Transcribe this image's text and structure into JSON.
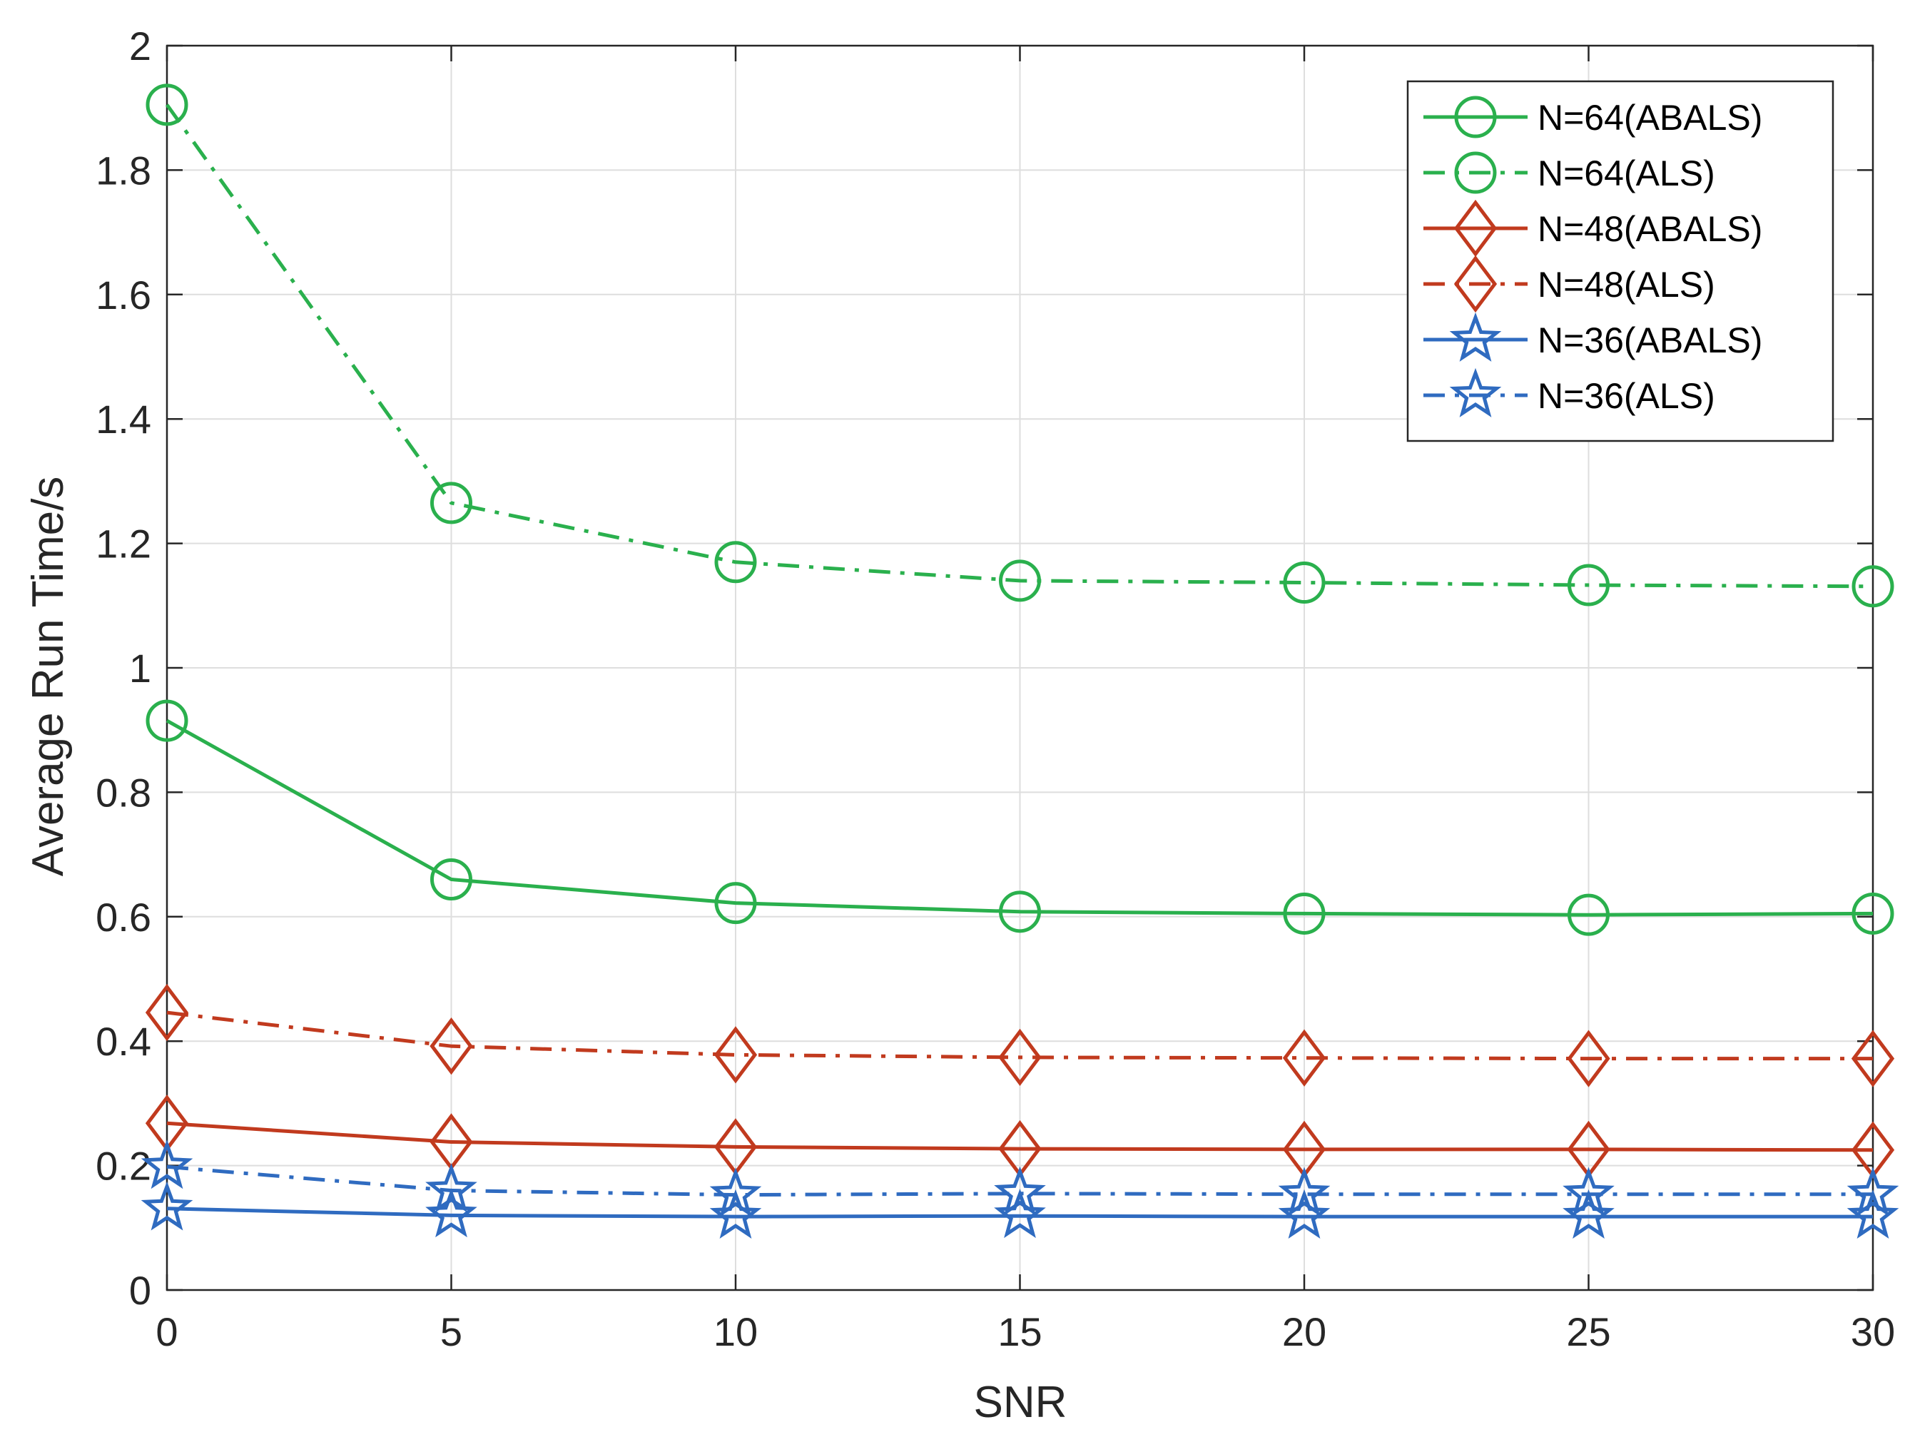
{
  "chart_data": {
    "type": "line",
    "title": "",
    "xlabel": "SNR",
    "ylabel": "Average Run Time/s",
    "xlim": [
      0,
      30
    ],
    "ylim": [
      0,
      2
    ],
    "xticks": [
      0,
      5,
      10,
      15,
      20,
      25,
      30
    ],
    "xtick_labels": [
      "0",
      "5",
      "10",
      "15",
      "20",
      "25",
      "30"
    ],
    "yticks": [
      0,
      0.2,
      0.4,
      0.6,
      0.8,
      1,
      1.2,
      1.4,
      1.6,
      1.8,
      2
    ],
    "ytick_labels": [
      "0",
      "0.2",
      "0.4",
      "0.6",
      "0.8",
      "1",
      "1.2",
      "1.4",
      "1.6",
      "1.8",
      "2"
    ],
    "grid": true,
    "legend_position": "top-right",
    "x": [
      0,
      5,
      10,
      15,
      20,
      25,
      30
    ],
    "series": [
      {
        "name": "N=64(ABALS)",
        "values": [
          0.915,
          0.66,
          0.622,
          0.608,
          0.605,
          0.603,
          0.605
        ],
        "color": "#2ab04d",
        "dash": "solid",
        "marker": "circle"
      },
      {
        "name": "N=64(ALS)",
        "values": [
          1.905,
          1.265,
          1.17,
          1.14,
          1.137,
          1.133,
          1.131
        ],
        "color": "#2ab04d",
        "dash": "dashdot",
        "marker": "circle"
      },
      {
        "name": "N=48(ABALS)",
        "values": [
          0.268,
          0.238,
          0.23,
          0.227,
          0.226,
          0.226,
          0.225
        ],
        "color": "#c13a1e",
        "dash": "solid",
        "marker": "diamond"
      },
      {
        "name": "N=48(ALS)",
        "values": [
          0.446,
          0.392,
          0.378,
          0.374,
          0.373,
          0.372,
          0.372
        ],
        "color": "#c13a1e",
        "dash": "dashdot",
        "marker": "diamond"
      },
      {
        "name": "N=36(ABALS)",
        "values": [
          0.131,
          0.12,
          0.118,
          0.119,
          0.118,
          0.118,
          0.118
        ],
        "color": "#2f6bc0",
        "dash": "solid",
        "marker": "star"
      },
      {
        "name": "N=36(ALS)",
        "values": [
          0.198,
          0.16,
          0.153,
          0.155,
          0.154,
          0.154,
          0.154
        ],
        "color": "#2f6bc0",
        "dash": "dashdot",
        "marker": "star"
      }
    ]
  }
}
